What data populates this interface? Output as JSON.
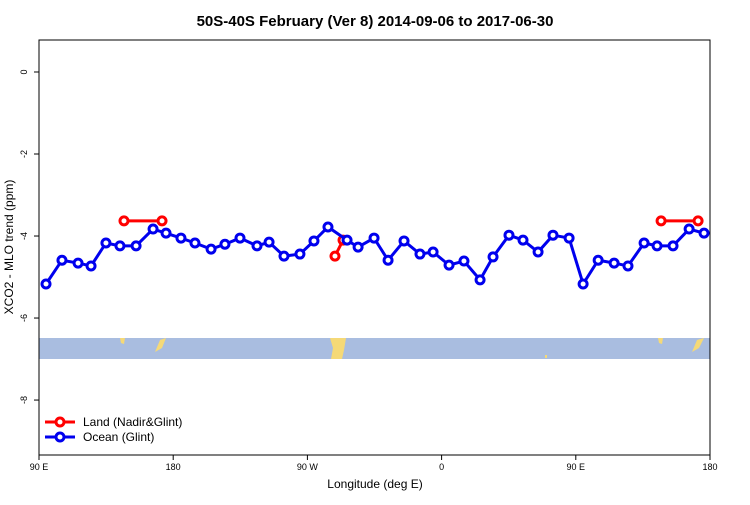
{
  "chart_data": {
    "type": "line",
    "title": "50S-40S February (Ver 8)   2014-09-06 to 2017-06-30",
    "x_label": "Longitude (deg E)",
    "y_label": "XCO2 - MLO trend (ppm)",
    "xlim": [
      90,
      540
    ],
    "xticks": [
      {
        "value": 90,
        "label": "90 E"
      },
      {
        "value": 180,
        "label": "180"
      },
      {
        "value": 270,
        "label": "90 W"
      },
      {
        "value": 360,
        "label": "0"
      },
      {
        "value": 450,
        "label": "90 E"
      },
      {
        "value": 540,
        "label": "180"
      }
    ],
    "ylim": [
      -9.34,
      0.78
    ],
    "yticks": [
      0,
      -2,
      -4,
      -6,
      -8
    ],
    "legend": "bottom-left",
    "series": [
      {
        "name": "Land (Nadir&Glint)",
        "color": "#ff0000",
        "x": [
          147,
          172.5,
          null,
          288.5,
          293.9,
          null,
          507.2,
          532
        ],
        "values": [
          -3.63,
          -3.63,
          null,
          -4.49,
          -4.1,
          null,
          -3.63,
          -3.63
        ]
      },
      {
        "name": "Ocean (Glint)",
        "color": "#0000ee",
        "x": [
          94.7,
          105.4,
          116.2,
          124.9,
          134.9,
          144.3,
          155.1,
          166.5,
          175.2,
          185.2,
          194.6,
          205.4,
          214.7,
          224.8,
          236.2,
          244.3,
          254.3,
          265.0,
          274.4,
          283.8,
          296.6,
          304.0,
          314.7,
          324.1,
          334.8,
          345.5,
          354.3,
          365.0,
          375.0,
          385.8,
          394.5,
          405.2,
          414.6,
          424.7,
          434.7,
          445.5,
          454.9,
          465.0,
          475.7,
          485.0,
          495.8,
          504.5,
          515.2,
          526.0,
          536.0
        ],
        "values": [
          -5.17,
          -4.59,
          -4.66,
          -4.73,
          -4.17,
          -4.24,
          -4.24,
          -3.83,
          -3.93,
          -4.05,
          -4.17,
          -4.32,
          -4.2,
          -4.05,
          -4.24,
          -4.15,
          -4.49,
          -4.44,
          -4.12,
          -3.78,
          -4.1,
          -4.27,
          -4.05,
          -4.59,
          -4.12,
          -4.44,
          -4.39,
          -4.71,
          -4.61,
          -5.07,
          -4.51,
          -3.98,
          -4.1,
          -4.39,
          -3.98,
          -4.05,
          -5.17,
          -4.59,
          -4.66,
          -4.73,
          -4.17,
          -4.24,
          -4.24,
          -3.83,
          -3.93
        ]
      }
    ]
  }
}
